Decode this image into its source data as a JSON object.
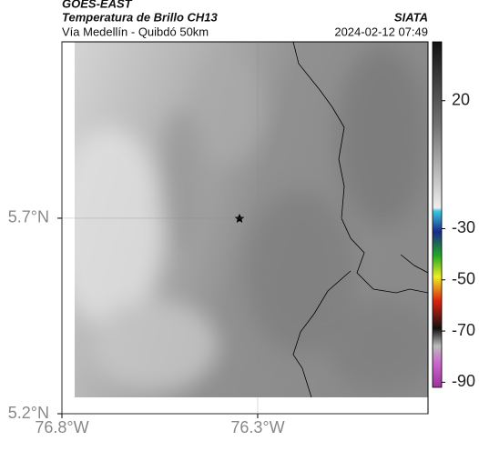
{
  "header": {
    "title": "GOES-EAST",
    "subtitle": "Temperatura de Brillo CH13",
    "source": "SIATA",
    "caption": "Vía Medellín - Quibdó 50km",
    "timestamp": "2024-02-12 07:49"
  },
  "map": {
    "xlim": [
      -76.8,
      -75.865
    ],
    "ylim": [
      5.2,
      6.151
    ],
    "xticks": [
      {
        "value": -76.8,
        "label": "76.8°W"
      },
      {
        "value": -76.3,
        "label": "76.3°W"
      }
    ],
    "yticks": [
      {
        "value": 5.7,
        "label": "5.7°N"
      },
      {
        "value": 5.2,
        "label": "5.2°N"
      }
    ]
  },
  "colorbar": {
    "lim": [
      -92,
      43
    ],
    "ticks": [
      20,
      -30,
      -50,
      -70,
      -90
    ]
  }
}
